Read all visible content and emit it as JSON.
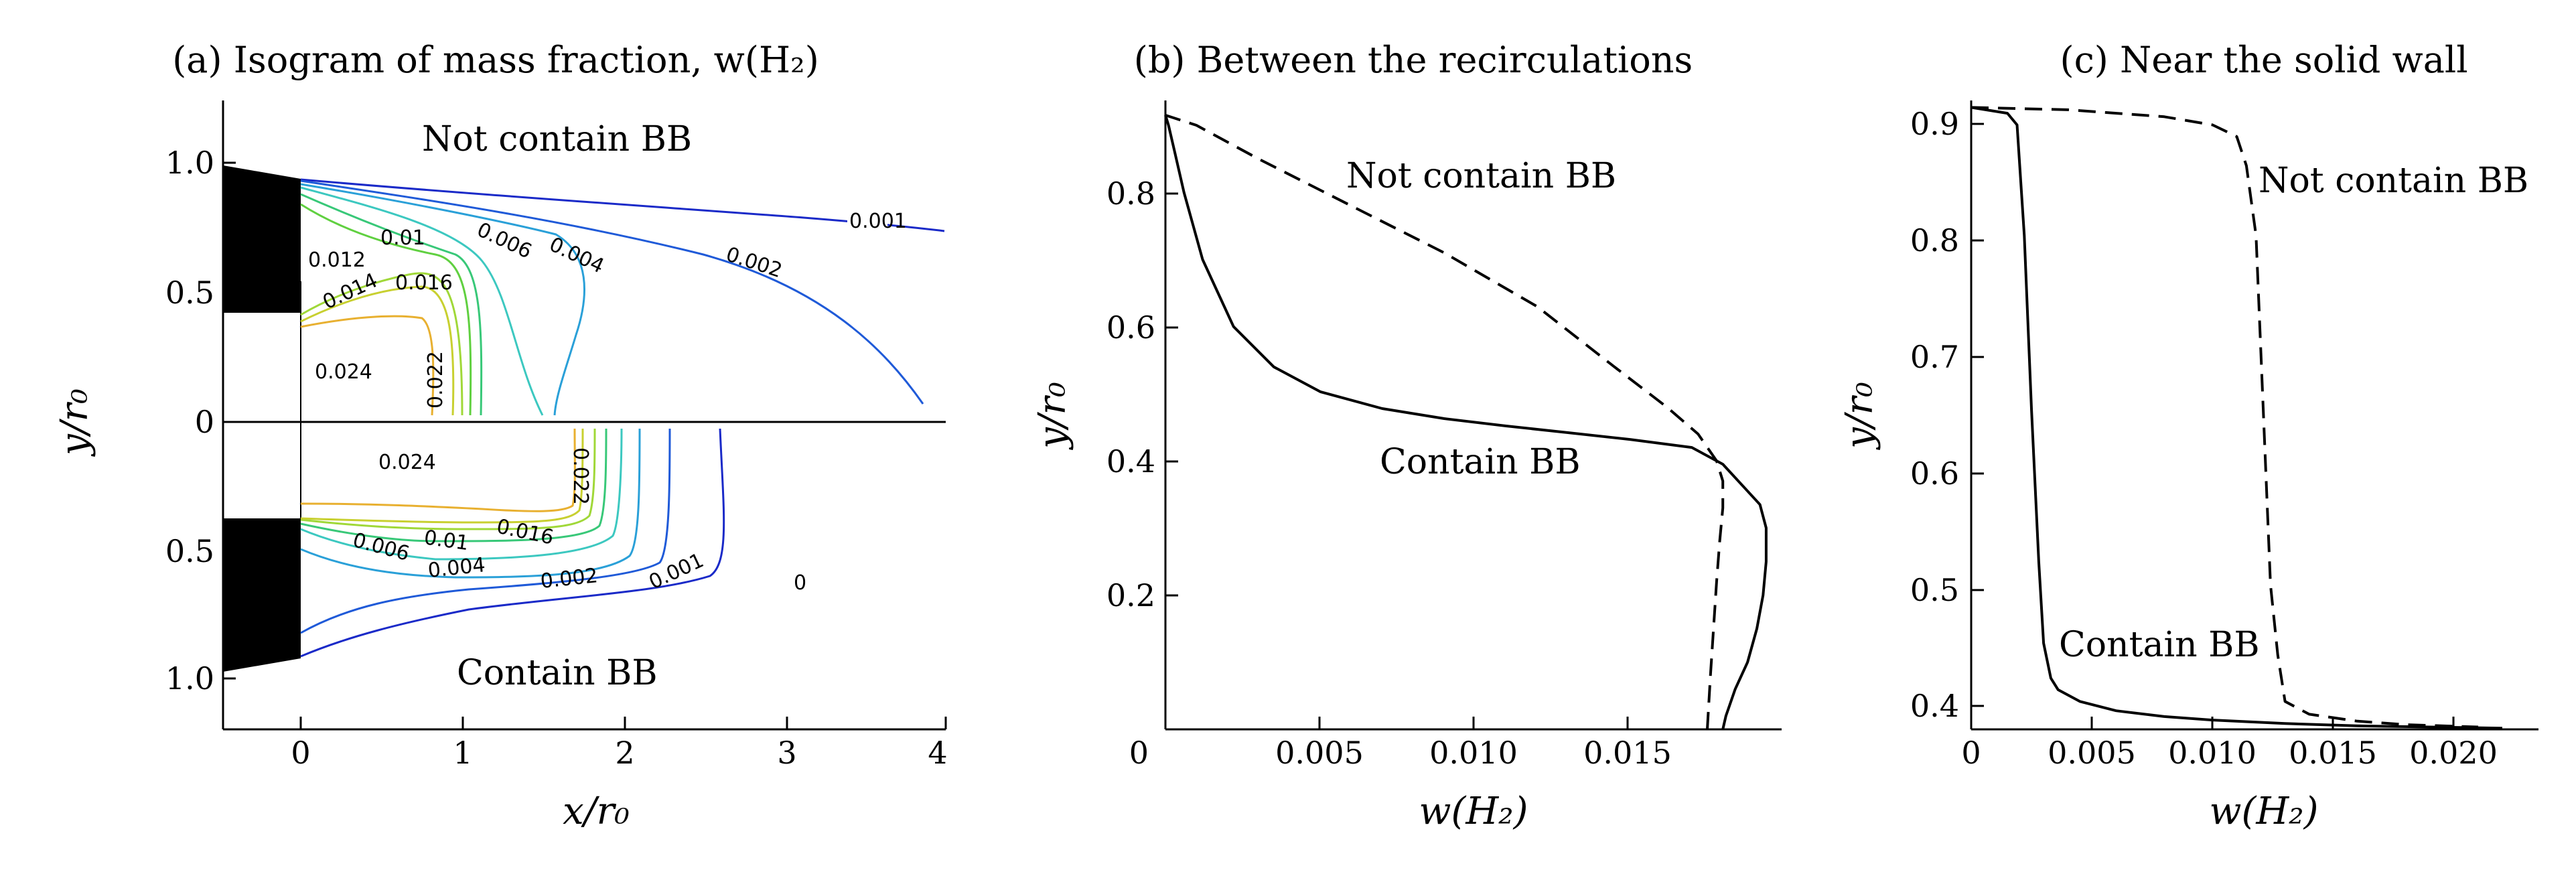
{
  "chart_data": [
    {
      "type": "contour",
      "title": "(a) Isogram of mass fraction, w(H₂)",
      "xlabel": "x/r₀",
      "ylabel": "y/r₀",
      "xlim": [
        -0.5,
        4
      ],
      "x_ticks": [
        "0",
        "1",
        "2",
        "3",
        "4"
      ],
      "y_ticks_top": [
        "1.0",
        "0.5",
        "0"
      ],
      "y_ticks_bottom": [
        "0.5",
        "1.0"
      ],
      "upper_half": {
        "label": "Not contain BB",
        "contour_labels": [
          "0.001",
          "0.002",
          "0.004",
          "0.006",
          "0.01",
          "0.012",
          "0.014",
          "0.016",
          "0.022",
          "0.024"
        ]
      },
      "lower_half": {
        "label": "Contain BB",
        "contour_labels": [
          "0.024",
          "0.022",
          "0.016",
          "0.01",
          "0.006",
          "0.004",
          "0.002",
          "0.001",
          "0"
        ]
      },
      "levels": [
        {
          "value": 0.001,
          "color": "#1a2ac8"
        },
        {
          "value": 0.002,
          "color": "#1f5ad8"
        },
        {
          "value": 0.004,
          "color": "#2aa0d8"
        },
        {
          "value": 0.006,
          "color": "#3cc8c0"
        },
        {
          "value": 0.01,
          "color": "#38c878"
        },
        {
          "value": 0.012,
          "color": "#60d040"
        },
        {
          "value": 0.014,
          "color": "#a0d838"
        },
        {
          "value": 0.016,
          "color": "#c8d030"
        },
        {
          "value": 0.022,
          "color": "#e8b030"
        }
      ]
    },
    {
      "type": "line",
      "title": "(b) Between the recirculations",
      "xlabel": "w(H₂)",
      "ylabel": "y/r₀",
      "xlim": [
        0,
        0.0199
      ],
      "ylim": [
        0,
        0.915
      ],
      "x_ticks": [
        "0",
        "0.005",
        "0.010",
        "0.015"
      ],
      "y_ticks": [
        "0",
        "0.2",
        "0.4",
        "0.6",
        "0.8"
      ],
      "series": [
        {
          "name": "Contain BB",
          "style": "solid",
          "x": [
            0.018,
            0.0181,
            0.0184,
            0.0188,
            0.0191,
            0.0193,
            0.0194,
            0.0194,
            0.0192,
            0.0187,
            0.018,
            0.017,
            0.015,
            0.013,
            0.011,
            0.009,
            0.007,
            0.005,
            0.0035,
            0.0022,
            0.0012,
            0.0006,
            0.0003,
            0.0001,
            0.0
          ],
          "y": [
            0.0,
            0.02,
            0.06,
            0.1,
            0.15,
            0.2,
            0.25,
            0.3,
            0.335,
            0.36,
            0.395,
            0.42,
            0.432,
            0.442,
            0.452,
            0.463,
            0.478,
            0.503,
            0.54,
            0.6,
            0.7,
            0.8,
            0.86,
            0.9,
            0.915
          ]
        },
        {
          "name": "Not contain BB",
          "style": "dashed",
          "x": [
            0.0175,
            0.0176,
            0.0177,
            0.0178,
            0.0179,
            0.018,
            0.018,
            0.0178,
            0.0172,
            0.0162,
            0.0145,
            0.012,
            0.009,
            0.006,
            0.003,
            0.001,
            0.0
          ],
          "y": [
            0.0,
            0.08,
            0.15,
            0.22,
            0.28,
            0.33,
            0.37,
            0.4,
            0.44,
            0.48,
            0.54,
            0.63,
            0.71,
            0.78,
            0.85,
            0.9,
            0.915
          ]
        }
      ]
    },
    {
      "type": "line",
      "title": "(c) Near the solid wall",
      "xlabel": "w(H₂)",
      "ylabel": "y/r₀",
      "xlim": [
        0,
        0.0235
      ],
      "ylim": [
        0.376,
        0.916
      ],
      "x_ticks": [
        "0",
        "0.005",
        "0.010",
        "0.015",
        "0.020"
      ],
      "y_ticks": [
        "0.4",
        "0.5",
        "0.6",
        "0.7",
        "0.8",
        "0.9"
      ],
      "series": [
        {
          "name": "Contain BB",
          "style": "solid",
          "x": [
            0.0,
            0.0015,
            0.0019,
            0.0022,
            0.0025,
            0.0028,
            0.003,
            0.0033,
            0.0036,
            0.0045,
            0.006,
            0.008,
            0.01,
            0.013,
            0.016,
            0.019,
            0.022
          ],
          "y": [
            0.91,
            0.905,
            0.895,
            0.8,
            0.65,
            0.52,
            0.45,
            0.42,
            0.41,
            0.4,
            0.392,
            0.387,
            0.384,
            0.381,
            0.379,
            0.378,
            0.377
          ]
        },
        {
          "name": "Not contain BB",
          "style": "dashed",
          "x": [
            0.0,
            0.004,
            0.008,
            0.01,
            0.011,
            0.0114,
            0.0118,
            0.012,
            0.0122,
            0.0124,
            0.0127,
            0.013,
            0.014,
            0.016,
            0.018,
            0.021
          ],
          "y": [
            0.91,
            0.908,
            0.902,
            0.895,
            0.885,
            0.86,
            0.8,
            0.7,
            0.6,
            0.5,
            0.44,
            0.4,
            0.389,
            0.383,
            0.38,
            0.378
          ]
        }
      ]
    }
  ]
}
